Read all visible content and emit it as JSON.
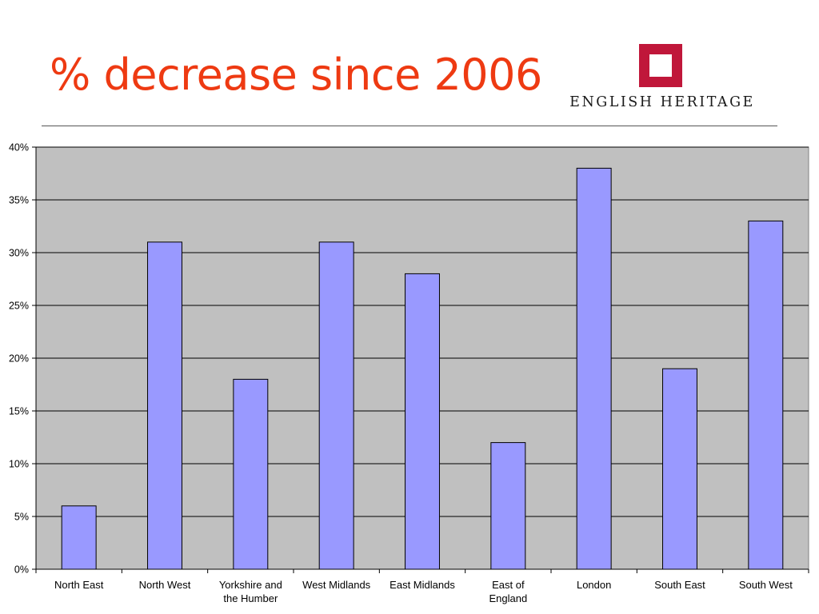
{
  "slide": {
    "title": "% decrease since 2006"
  },
  "logo": {
    "wordmark": "ENGLISH HERITAGE",
    "icon": "english-heritage-portcullis-icon",
    "color": "#c0173a"
  },
  "colors": {
    "title": "#ee3a12",
    "bar_fill": "#9999ff",
    "plot_background": "#c0c0c0",
    "gridline": "#000000"
  },
  "chart_data": {
    "type": "bar",
    "categories": [
      "North East",
      "North West",
      "Yorkshire and the Humber",
      "West Midlands",
      "East Midlands",
      "East of England",
      "London",
      "South East",
      "South West"
    ],
    "category_lines": [
      [
        "North East"
      ],
      [
        "North West"
      ],
      [
        "Yorkshire and",
        "the Humber"
      ],
      [
        "West Midlands"
      ],
      [
        "East Midlands"
      ],
      [
        "East of",
        "England"
      ],
      [
        "London"
      ],
      [
        "South East"
      ],
      [
        "South West"
      ]
    ],
    "values": [
      6,
      31,
      18,
      31,
      28,
      12,
      38,
      19,
      33
    ],
    "ylim": [
      0,
      40
    ],
    "yticks": [
      0,
      5,
      10,
      15,
      20,
      25,
      30,
      35,
      40
    ],
    "ytick_labels": [
      "0%",
      "5%",
      "10%",
      "15%",
      "20%",
      "25%",
      "30%",
      "35%",
      "40%"
    ],
    "grid": true,
    "legend": "none",
    "xlabel": "",
    "ylabel": ""
  }
}
